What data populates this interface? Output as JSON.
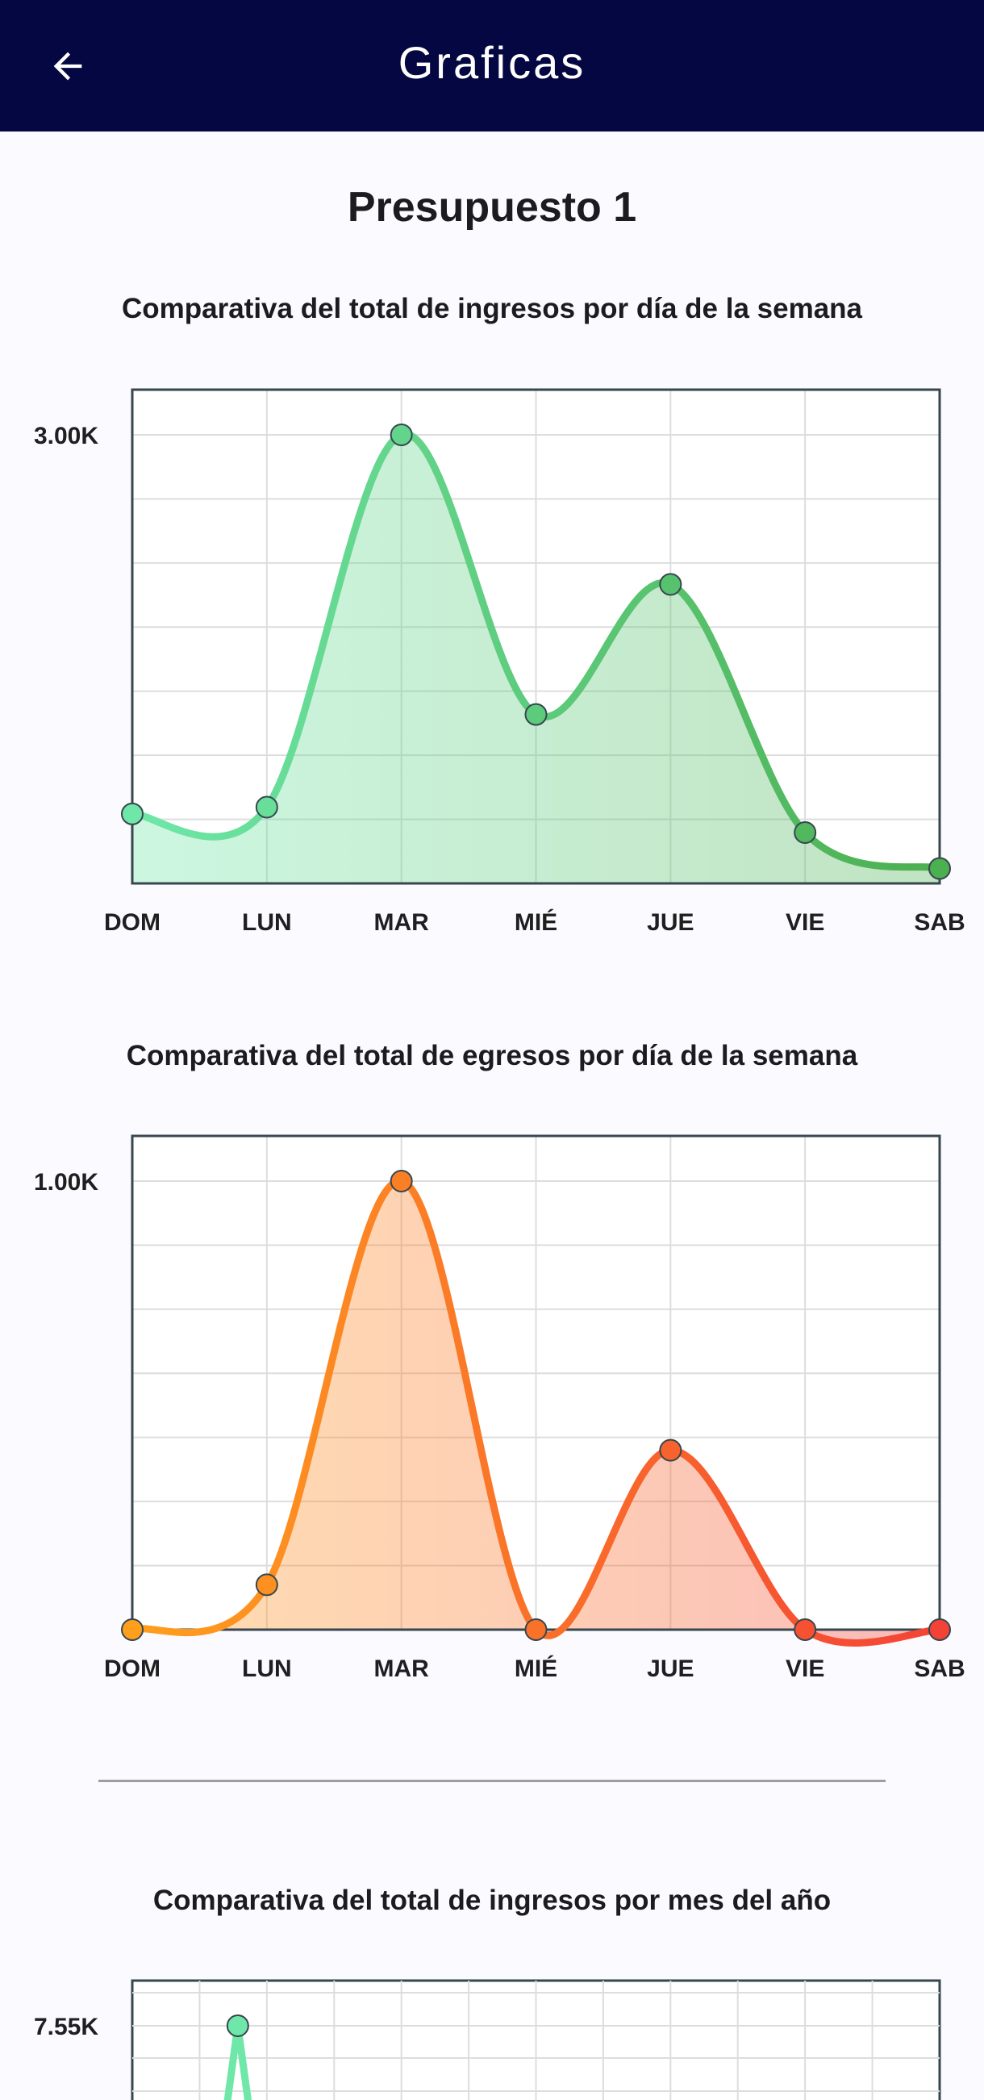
{
  "appbar": {
    "title": "Graficas",
    "back_icon": "arrow-back-icon"
  },
  "page": {
    "title": "Presupuesto 1"
  },
  "chart_data": [
    {
      "type": "area",
      "title": "Comparativa del total de ingresos por día de la semana",
      "categories": [
        "DOM",
        "LUN",
        "MAR",
        "MIÉ",
        "JUE",
        "VIE",
        "SAB"
      ],
      "values": [
        465,
        510,
        3000,
        1130,
        2000,
        340,
        100
      ],
      "ylim": [
        0,
        3300
      ],
      "ytick_label": "3.00K",
      "ytick_value": 3000,
      "colors": {
        "start": "#6ee7a8",
        "end": "#4caf50"
      },
      "grid": true
    },
    {
      "type": "area",
      "title": "Comparativa del total de egresos por día de la semana",
      "categories": [
        "DOM",
        "LUN",
        "MAR",
        "MIÉ",
        "JUE",
        "VIE",
        "SAB"
      ],
      "values": [
        0,
        100,
        1000,
        0,
        400,
        0,
        0
      ],
      "ylim": [
        0,
        1100
      ],
      "ytick_label": "1.00K",
      "ytick_value": 1000,
      "colors": {
        "start": "#ff9f1c",
        "end": "#f44336"
      },
      "grid": true
    },
    {
      "type": "line",
      "title": "Comparativa del total de ingresos por mes del año",
      "x_count": 12,
      "values": [
        null,
        null,
        7550
      ],
      "ytick_label": "7.55K",
      "ytick_value": 7550,
      "colors": {
        "start": "#6ee7a8",
        "end": "#4caf50"
      },
      "grid": true
    }
  ]
}
